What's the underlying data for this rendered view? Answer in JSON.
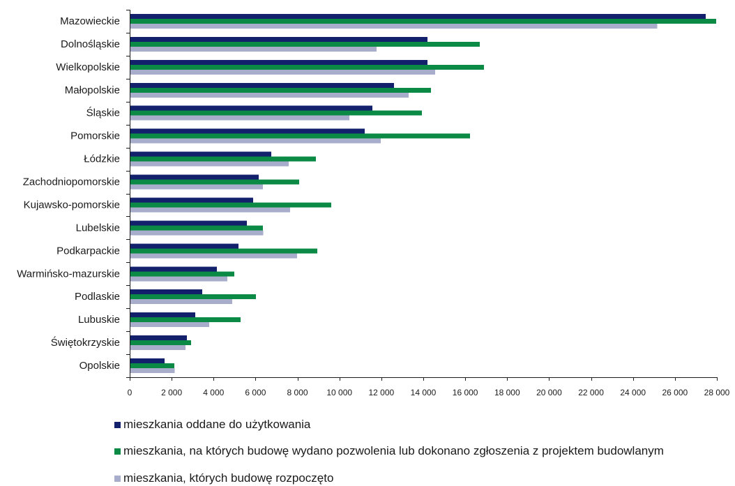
{
  "chart_data": {
    "type": "bar",
    "orientation": "horizontal",
    "categories": [
      "Mazowieckie",
      "Dolnośląskie",
      "Wielkopolskie",
      "Małopolskie",
      "Śląskie",
      "Pomorskie",
      "Łódzkie",
      "Zachodniopomorskie",
      "Kujawsko-pomorskie",
      "Lubelskie",
      "Podkarpackie",
      "Warmińsko-mazurskie",
      "Podlaskie",
      "Lubuskie",
      "Świętokrzyskie",
      "Opolskie"
    ],
    "series": [
      {
        "name": "mieszkania oddane do użytkowania",
        "color": "#13206b",
        "values": [
          27470,
          14200,
          14200,
          12600,
          11570,
          11200,
          6750,
          6150,
          5890,
          5590,
          5190,
          4160,
          3460,
          3130,
          2730,
          1660
        ]
      },
      {
        "name": "mieszkania, na których budowę wydano pozwolenia lub dokonano zgłoszenia z projektem budowlanym",
        "color": "#0a8a45",
        "values": [
          27970,
          16700,
          16900,
          14370,
          13930,
          16230,
          8880,
          8080,
          9610,
          6350,
          8950,
          4990,
          6020,
          5290,
          2930,
          2130
        ]
      },
      {
        "name": "mieszkania, których budowę rozpoczęto",
        "color": "#a7adcb",
        "values": [
          25150,
          11770,
          14570,
          13300,
          10480,
          11970,
          7580,
          6350,
          7650,
          6370,
          7980,
          4660,
          4890,
          3790,
          2660,
          2150
        ]
      }
    ],
    "xlim": [
      0,
      28000
    ],
    "x_ticks": [
      0,
      2000,
      4000,
      6000,
      8000,
      10000,
      12000,
      14000,
      16000,
      18000,
      20000,
      22000,
      24000,
      26000,
      28000
    ],
    "x_tick_labels": [
      "0",
      "2 000",
      "4 000",
      "6 000",
      "8 000",
      "10 000",
      "12 000",
      "14 000",
      "16 000",
      "18 000",
      "20 000",
      "22 000",
      "24 000",
      "26 000",
      "28 000"
    ],
    "grid": false,
    "legend_position": "bottom-left"
  }
}
